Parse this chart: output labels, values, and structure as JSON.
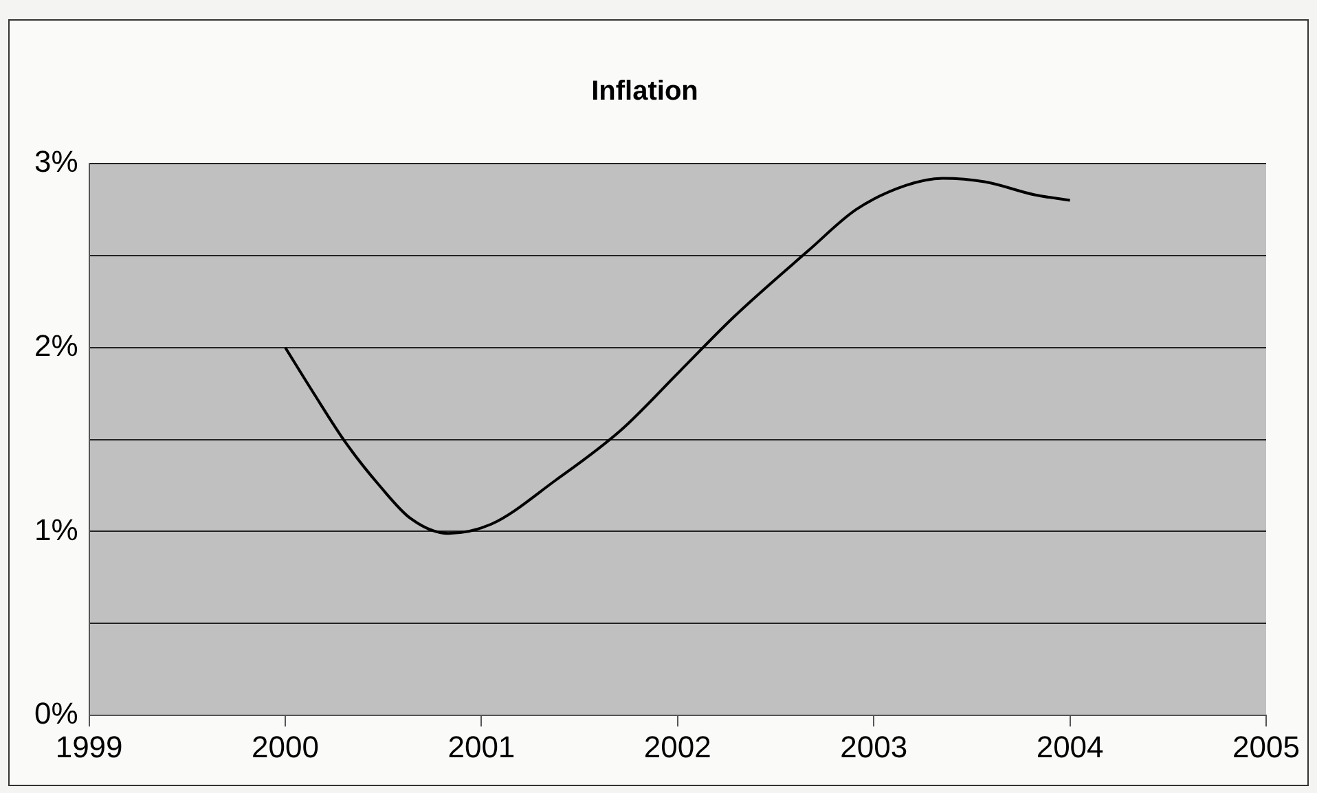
{
  "chart_data": {
    "type": "line",
    "title": "Inflation",
    "x": [
      2000,
      2000.14,
      2000.31,
      2000.48,
      2000.64,
      2000.83,
      2001.05,
      2001.38,
      2001.71,
      2002.01,
      2002.29,
      2002.67,
      2002.91,
      2003.16,
      2003.35,
      2003.57,
      2003.82,
      2004
    ],
    "series": [
      {
        "color": "#000000",
        "values": [
          2.0,
          1.76,
          1.48,
          1.25,
          1.07,
          0.99,
          1.04,
          1.28,
          1.55,
          1.87,
          2.17,
          2.53,
          2.75,
          2.88,
          2.92,
          2.9,
          2.83,
          2.8
        ]
      }
    ],
    "xlim": [
      1999,
      2005
    ],
    "xticks": [
      1999,
      2000,
      2001,
      2002,
      2003,
      2004,
      2005
    ],
    "ylim": [
      0,
      3
    ],
    "yticks": [
      {
        "value": 0,
        "label": "0%"
      },
      {
        "value": 0.5,
        "label": null
      },
      {
        "value": 1,
        "label": "1%"
      },
      {
        "value": 1.5,
        "label": null
      },
      {
        "value": 2,
        "label": "2%"
      },
      {
        "value": 2.5,
        "label": null
      },
      {
        "value": 3,
        "label": "3%"
      }
    ],
    "grid": "y",
    "legend": false,
    "marker": "none",
    "line_style": "solid"
  }
}
